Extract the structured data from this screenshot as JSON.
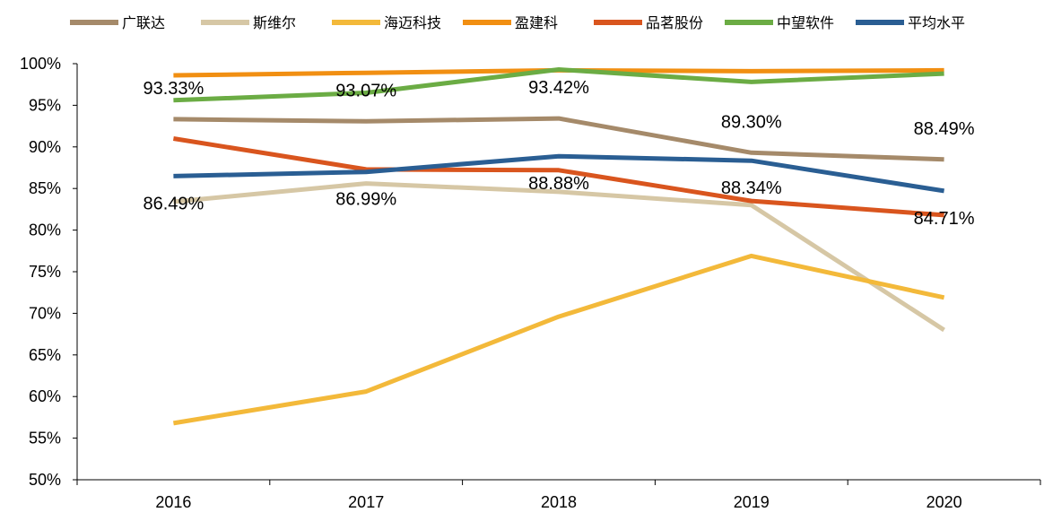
{
  "chart_data": {
    "type": "line",
    "categories": [
      "2016",
      "2017",
      "2018",
      "2019",
      "2020"
    ],
    "ylim": [
      50,
      100
    ],
    "yticks": [
      50,
      55,
      60,
      65,
      70,
      75,
      80,
      85,
      90,
      95,
      100
    ],
    "y_unit": "%",
    "legend_position": "top",
    "grid": false,
    "series": [
      {
        "name": "广联达",
        "color": "#a58a6a",
        "values": [
          93.33,
          93.07,
          93.42,
          89.3,
          88.49
        ]
      },
      {
        "name": "斯维尔",
        "color": "#d6c7a5",
        "values": [
          83.4,
          85.6,
          84.6,
          83.0,
          68.0
        ]
      },
      {
        "name": "海迈科技",
        "color": "#f3b93a",
        "values": [
          56.8,
          60.6,
          69.6,
          76.9,
          71.9
        ]
      },
      {
        "name": "盈建科",
        "color": "#f18f12",
        "values": [
          98.6,
          98.9,
          99.2,
          99.1,
          99.2
        ]
      },
      {
        "name": "品茗股份",
        "color": "#d9551e",
        "values": [
          91.0,
          87.3,
          87.2,
          83.5,
          81.8
        ]
      },
      {
        "name": "中望软件",
        "color": "#6bac44",
        "values": [
          95.6,
          96.5,
          99.3,
          97.8,
          98.8
        ]
      },
      {
        "name": "平均水平",
        "color": "#2a5e93",
        "values": [
          86.49,
          86.99,
          88.88,
          88.34,
          84.71
        ]
      }
    ],
    "data_labels": [
      {
        "series": "广联达",
        "values": [
          "93.33%",
          "93.07%",
          "93.42%",
          "89.30%",
          "88.49%"
        ]
      },
      {
        "series": "平均水平",
        "values": [
          "86.49%",
          "86.99%",
          "88.88%",
          "88.34%",
          "84.71%"
        ]
      }
    ]
  }
}
